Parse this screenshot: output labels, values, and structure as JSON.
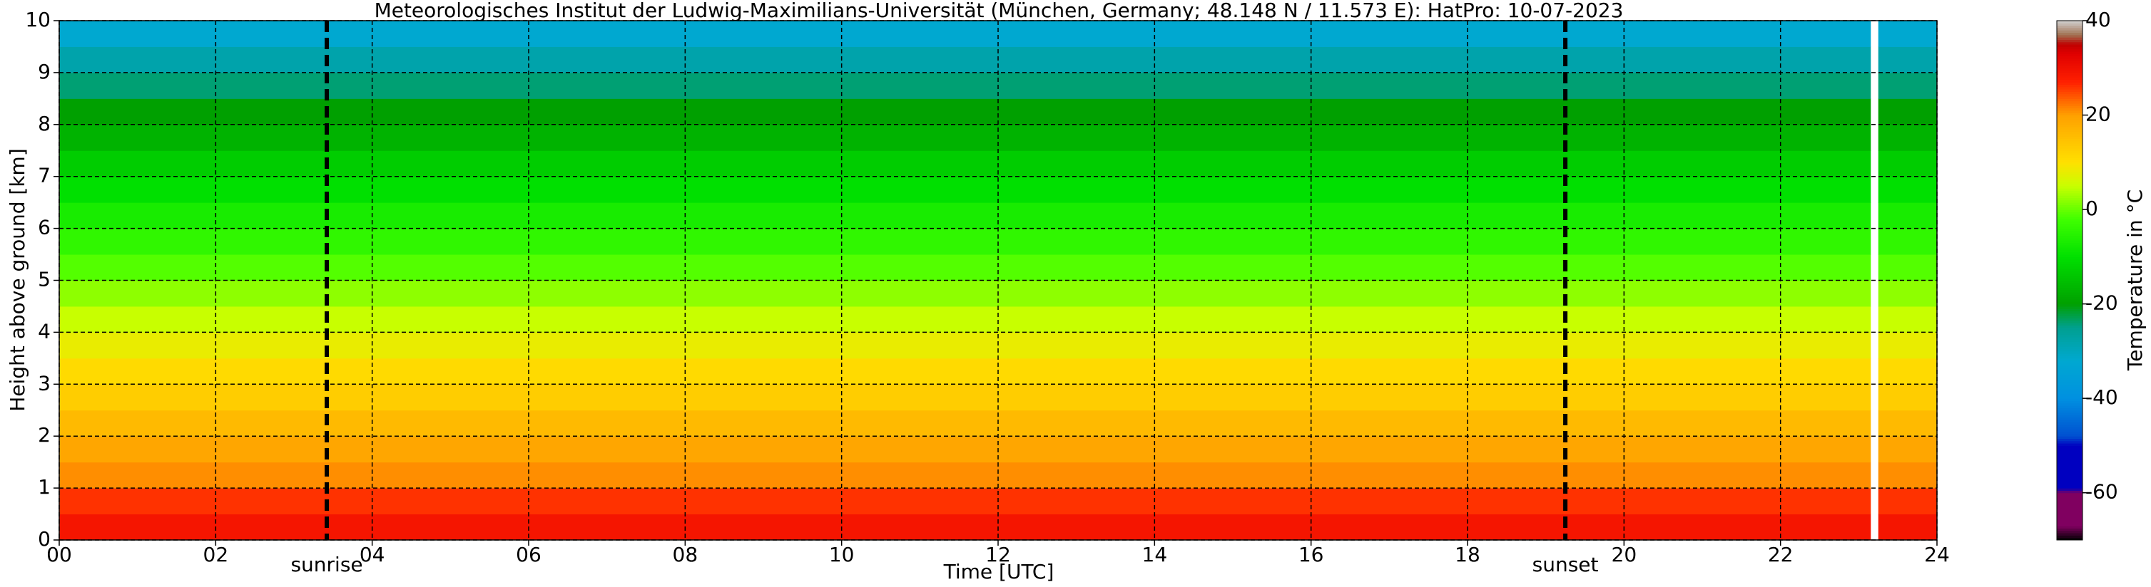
{
  "chart_data": {
    "type": "heatmap",
    "title": "Meteorologisches Institut der Ludwig-Maximilians-Universität (München, Germany; 48.148 N / 11.573 E):    HatPro: 10-07-2023",
    "x_label": "Time [UTC]",
    "y_label": "Height above ground [km]",
    "colorbar_label": "Temperature in °C",
    "x_bins": [
      0,
      23.15,
      23.25,
      24
    ],
    "y_bins": [
      0,
      0.5,
      1,
      1.5,
      2,
      2.5,
      3,
      3.5,
      4,
      4.5,
      5,
      5.5,
      6,
      6.5,
      7,
      7.5,
      8,
      8.5,
      9,
      9.5,
      10
    ],
    "values": [
      [
        29,
        null,
        29
      ],
      [
        26,
        null,
        26
      ],
      [
        21,
        null,
        21
      ],
      [
        19,
        null,
        19
      ],
      [
        16,
        null,
        16
      ],
      [
        13,
        null,
        13
      ],
      [
        11,
        null,
        11
      ],
      [
        8,
        null,
        8
      ],
      [
        5,
        null,
        5
      ],
      [
        2,
        null,
        2
      ],
      [
        -1,
        null,
        -1
      ],
      [
        -4,
        null,
        -4
      ],
      [
        -7,
        null,
        -7
      ],
      [
        -10,
        null,
        -10
      ],
      [
        -13,
        null,
        -13
      ],
      [
        -17,
        null,
        -17
      ],
      [
        -20,
        null,
        -20
      ],
      [
        -24,
        null,
        -24
      ],
      [
        -28,
        null,
        -28
      ],
      [
        -32,
        null,
        -32
      ]
    ],
    "xlim": [
      0,
      24
    ],
    "xticks": [
      {
        "value": 0,
        "label": "00"
      },
      {
        "value": 2,
        "label": "02"
      },
      {
        "value": 4,
        "label": "04"
      },
      {
        "value": 6,
        "label": "06"
      },
      {
        "value": 8,
        "label": "08"
      },
      {
        "value": 10,
        "label": "10"
      },
      {
        "value": 12,
        "label": "12"
      },
      {
        "value": 14,
        "label": "14"
      },
      {
        "value": 16,
        "label": "16"
      },
      {
        "value": 18,
        "label": "18"
      },
      {
        "value": 20,
        "label": "20"
      },
      {
        "value": 22,
        "label": "22"
      },
      {
        "value": 24,
        "label": "24"
      }
    ],
    "ylim": [
      0,
      10
    ],
    "yticks": [
      0,
      1,
      2,
      3,
      4,
      5,
      6,
      7,
      8,
      9,
      10
    ],
    "clim": [
      -70,
      40
    ],
    "cticks": [
      -60,
      -40,
      -20,
      0,
      20,
      40
    ],
    "grid": true,
    "colormap": [
      [
        -70,
        "#000000"
      ],
      [
        -67,
        "#800060"
      ],
      [
        -60,
        "#800060"
      ],
      [
        -59,
        "#0000c0"
      ],
      [
        -50,
        "#0000c0"
      ],
      [
        -48,
        "#0050d0"
      ],
      [
        -40,
        "#0090e0"
      ],
      [
        -32,
        "#00a8d0"
      ],
      [
        -25,
        "#00a090"
      ],
      [
        -20,
        "#00a000"
      ],
      [
        -10,
        "#00e000"
      ],
      [
        -2,
        "#40ff00"
      ],
      [
        5,
        "#c8ff00"
      ],
      [
        10,
        "#ffe000"
      ],
      [
        20,
        "#ffa000"
      ],
      [
        27,
        "#ff2000"
      ],
      [
        33,
        "#e00000"
      ],
      [
        35,
        "#c00000"
      ],
      [
        37,
        "#a07050"
      ],
      [
        40,
        "#d0d0d0"
      ]
    ],
    "annotations": [
      {
        "label": "sunrise",
        "x": 3.42
      },
      {
        "label": "sunset",
        "x": 19.25
      }
    ]
  }
}
